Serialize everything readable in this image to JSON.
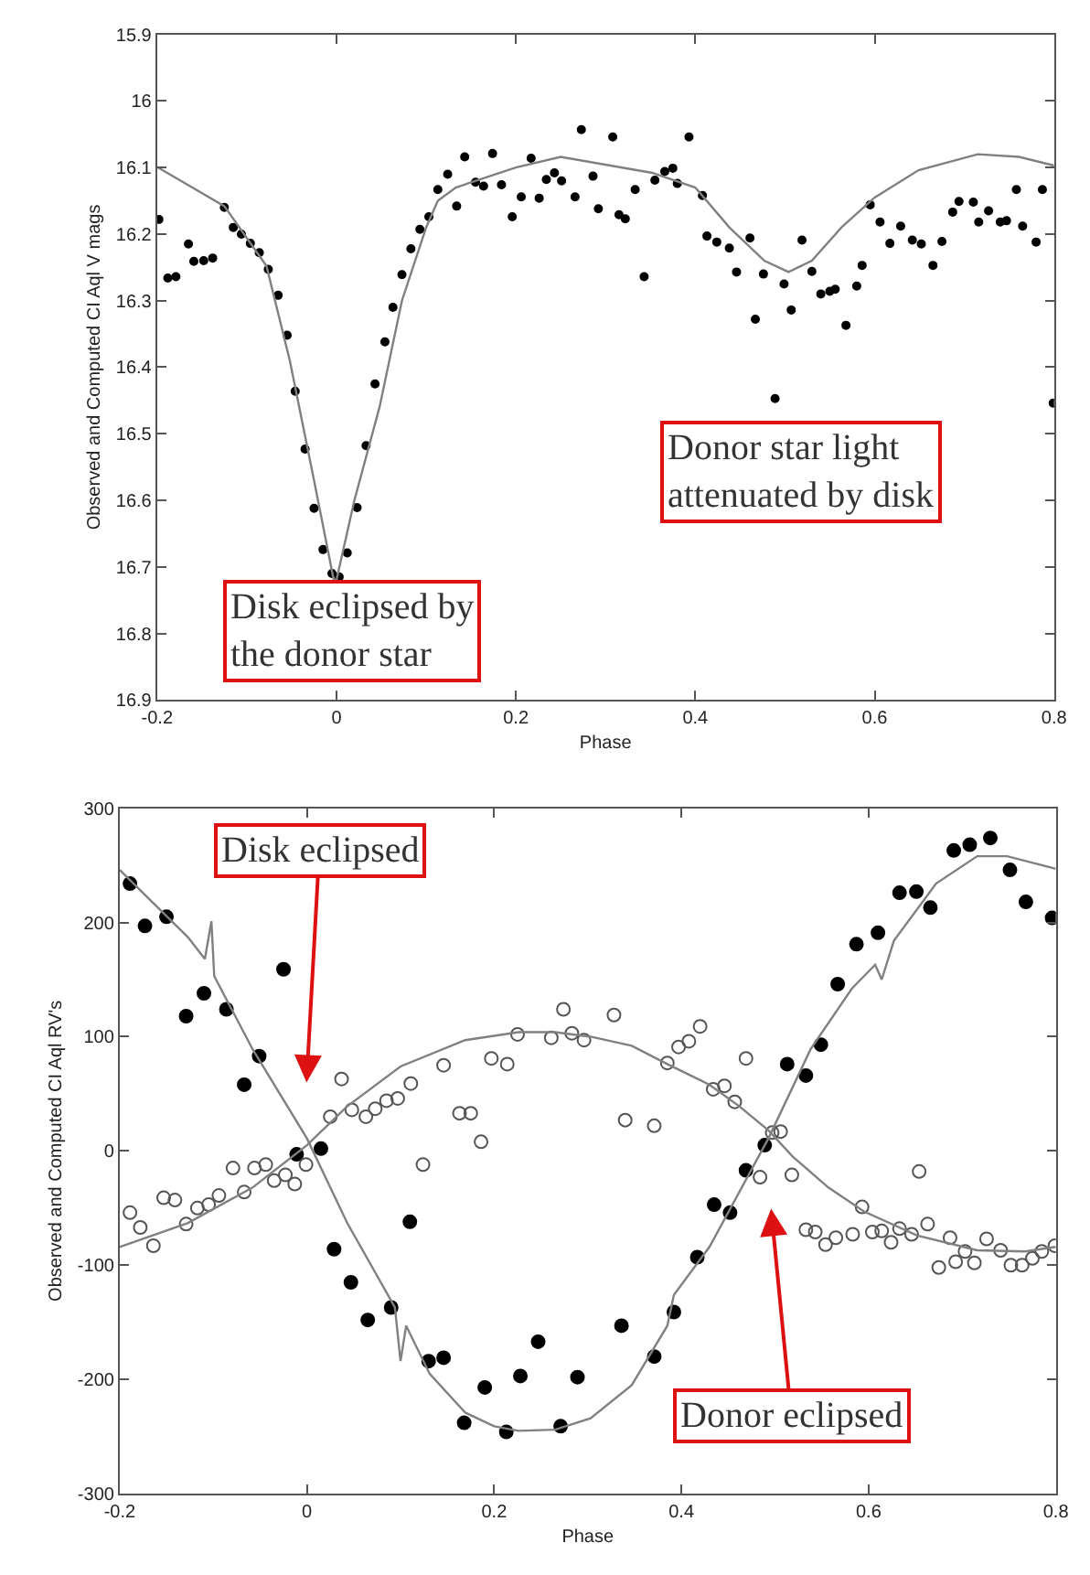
{
  "chart_data": [
    {
      "type": "scatter",
      "xlabel": "Phase",
      "ylabel": "Observed and Computed CI Aql V mags",
      "xlim": [
        -0.2,
        0.8
      ],
      "xticks": [
        -0.2,
        0,
        0.2,
        0.4,
        0.6,
        0.8
      ],
      "ylim": [
        16.9,
        15.9
      ],
      "yticks": [
        15.9,
        16,
        16.1,
        16.2,
        16.3,
        16.4,
        16.5,
        16.6,
        16.7,
        16.8,
        16.9
      ],
      "grid": false,
      "annotations": [
        "Disk eclipsed by\nthe donor star",
        "Donor star light\nattenuated by disk"
      ],
      "series": [
        {
          "marker": "circle",
          "color": "#000000",
          "x": [
            -0.198,
            -0.188,
            -0.179,
            -0.165,
            -0.159,
            -0.148,
            -0.138,
            -0.125,
            -0.115,
            -0.106,
            -0.096,
            -0.086,
            -0.076,
            -0.065,
            -0.055,
            -0.046,
            -0.035,
            -0.025,
            -0.015,
            -0.005,
            0.003,
            0.012,
            0.023,
            0.033,
            0.043,
            0.054,
            0.063,
            0.073,
            0.083,
            0.093,
            0.103,
            0.113,
            0.124,
            0.134,
            0.143,
            0.155,
            0.164,
            0.174,
            0.184,
            0.196,
            0.206,
            0.217,
            0.226,
            0.234,
            0.243,
            0.251,
            0.266,
            0.273,
            0.286,
            0.292,
            0.308,
            0.315,
            0.322,
            0.333,
            0.343,
            0.355,
            0.366,
            0.375,
            0.38,
            0.393,
            0.408,
            0.413,
            0.424,
            0.438,
            0.446,
            0.461,
            0.467,
            0.476,
            0.489,
            0.499,
            0.507,
            0.519,
            0.53,
            0.54,
            0.55,
            0.556,
            0.568,
            0.58,
            0.586,
            0.595,
            0.606,
            0.617,
            0.629,
            0.642,
            0.652,
            0.665,
            0.675,
            0.687,
            0.694,
            0.71,
            0.716,
            0.727,
            0.74,
            0.747,
            0.758,
            0.765,
            0.78,
            0.787,
            0.799
          ],
          "values": [
            16.178,
            16.266,
            16.264,
            16.215,
            16.241,
            16.24,
            16.236,
            16.16,
            16.19,
            16.2,
            16.214,
            16.228,
            16.253,
            16.292,
            16.352,
            16.436,
            16.523,
            16.612,
            16.674,
            16.71,
            16.715,
            16.679,
            16.611,
            16.518,
            16.425,
            16.362,
            16.31,
            16.261,
            16.222,
            16.193,
            16.174,
            16.133,
            16.11,
            16.158,
            16.084,
            16.122,
            16.128,
            16.079,
            16.126,
            16.174,
            16.144,
            16.086,
            16.146,
            16.118,
            16.108,
            16.12,
            16.144,
            16.043,
            16.113,
            16.162,
            16.054,
            16.171,
            16.177,
            16.133,
            16.264,
            16.119,
            16.106,
            16.101,
            16.124,
            16.054,
            16.142,
            16.203,
            16.212,
            16.221,
            16.257,
            16.206,
            16.328,
            16.26,
            16.447,
            16.275,
            16.314,
            16.209,
            16.256,
            16.29,
            16.286,
            16.283,
            16.337,
            16.278,
            16.247,
            16.156,
            16.182,
            16.214,
            16.188,
            16.209,
            16.215,
            16.247,
            16.211,
            16.167,
            16.151,
            16.152,
            16.182,
            16.165,
            16.182,
            16.18,
            16.133,
            16.188,
            16.212,
            16.133,
            16.454
          ]
        },
        {
          "type": "line",
          "marker": "none",
          "line_style": "solid",
          "color": "#808080",
          "x": [
            -0.2,
            -0.125,
            -0.078,
            -0.052,
            -0.025,
            -0.003,
            0,
            0.02,
            0.048,
            0.073,
            0.1,
            0.113,
            0.133,
            0.2,
            0.25,
            0.352,
            0.4,
            0.438,
            0.477,
            0.504,
            0.53,
            0.563,
            0.6,
            0.649,
            0.715,
            0.761,
            0.8
          ],
          "values": [
            16.099,
            16.158,
            16.248,
            16.39,
            16.57,
            16.72,
            16.72,
            16.6,
            16.46,
            16.3,
            16.19,
            16.15,
            16.13,
            16.1,
            16.084,
            16.108,
            16.13,
            16.19,
            16.24,
            16.257,
            16.24,
            16.19,
            16.145,
            16.104,
            16.08,
            16.084,
            16.097
          ]
        }
      ]
    },
    {
      "type": "scatter",
      "xlabel": "Phase",
      "ylabel": "Observed and Computed CI Aql RV's",
      "xlim": [
        -0.2,
        0.8
      ],
      "xticks": [
        -0.2,
        0,
        0.2,
        0.4,
        0.6,
        0.8
      ],
      "ylim": [
        -300,
        300
      ],
      "yticks": [
        -300,
        -200,
        -100,
        0,
        100,
        200,
        300
      ],
      "grid": false,
      "annotations": [
        "Disk eclipsed",
        "Donor eclipsed"
      ],
      "series": [
        {
          "marker": "circle",
          "color": "#000000",
          "x": [
            -0.189,
            -0.173,
            -0.15,
            -0.129,
            -0.11,
            -0.086,
            -0.067,
            -0.051,
            -0.025,
            -0.011,
            0.015,
            0.029,
            0.047,
            0.065,
            0.09,
            0.11,
            0.13,
            0.146,
            0.168,
            0.19,
            0.213,
            0.228,
            0.247,
            0.271,
            0.289,
            0.336,
            0.371,
            0.392,
            0.417,
            0.435,
            0.452,
            0.469,
            0.489,
            0.513,
            0.533,
            0.549,
            0.567,
            0.587,
            0.61,
            0.633,
            0.651,
            0.666,
            0.691,
            0.708,
            0.73,
            0.751,
            0.768,
            0.796
          ],
          "values": [
            234,
            197,
            205,
            118,
            138,
            124,
            58,
            83,
            159,
            -3,
            2,
            -86,
            -115,
            -148,
            -137,
            -62,
            -184,
            -181,
            -238,
            -207,
            -246,
            -197,
            -167,
            -241,
            -198,
            -153,
            -180,
            -141,
            -93,
            -47,
            -54,
            -17,
            5,
            76,
            66,
            93,
            146,
            181,
            191,
            226,
            227,
            213,
            263,
            268,
            274,
            246,
            218,
            204
          ]
        },
        {
          "marker": "circle-open",
          "color": "#555555",
          "x": [
            -0.189,
            -0.178,
            -0.164,
            -0.153,
            -0.141,
            -0.129,
            -0.117,
            -0.105,
            -0.094,
            -0.079,
            -0.067,
            -0.056,
            -0.044,
            -0.035,
            -0.023,
            -0.013,
            -0.001,
            0.025,
            0.037,
            0.048,
            0.063,
            0.073,
            0.085,
            0.097,
            0.111,
            0.124,
            0.146,
            0.163,
            0.175,
            0.186,
            0.197,
            0.214,
            0.225,
            0.261,
            0.274,
            0.283,
            0.296,
            0.328,
            0.34,
            0.371,
            0.385,
            0.397,
            0.408,
            0.42,
            0.434,
            0.446,
            0.457,
            0.469,
            0.484,
            0.497,
            0.506,
            0.518,
            0.533,
            0.543,
            0.554,
            0.565,
            0.583,
            0.593,
            0.604,
            0.614,
            0.624,
            0.633,
            0.646,
            0.654,
            0.663,
            0.675,
            0.687,
            0.693,
            0.703,
            0.713,
            0.726,
            0.741,
            0.752,
            0.764,
            0.775,
            0.785,
            0.799
          ],
          "values": [
            -54,
            -67,
            -83,
            -41,
            -43,
            -64,
            -50,
            -47,
            -39,
            -15,
            -36,
            -15,
            -12,
            -26,
            -21,
            -29,
            -12,
            30,
            63,
            36,
            30,
            37,
            44,
            46,
            59,
            -12,
            75,
            33,
            33,
            8,
            81,
            76,
            102,
            99,
            124,
            103,
            97,
            119,
            27,
            22,
            77,
            91,
            96,
            109,
            54,
            57,
            43,
            81,
            -23,
            16,
            17,
            -21,
            -69,
            -71,
            -82,
            -76,
            -73,
            -49,
            -71,
            -70,
            -80,
            -68,
            -73,
            -18,
            -64,
            -102,
            -76,
            -97,
            -88,
            -98,
            -77,
            -87,
            -100,
            -100,
            -94,
            -88,
            -83
          ]
        },
        {
          "type": "line",
          "marker": "none",
          "line_style": "solid",
          "color": "#808080",
          "x": [
            -0.2,
            -0.127,
            -0.109,
            -0.102,
            -0.099,
            -0.058,
            0,
            0.043,
            0.094,
            0.1,
            0.106,
            0.131,
            0.169,
            0.2,
            0.226,
            0.265,
            0.303,
            0.347,
            0.385,
            0.392,
            0.43,
            0.493,
            0.538,
            0.582,
            0.607,
            0.614,
            0.627,
            0.672,
            0.716,
            0.748,
            0.8
          ],
          "values": [
            246,
            187,
            168,
            201,
            153,
            89,
            11,
            -63,
            -137,
            -184,
            -153,
            -195,
            -229,
            -241,
            -245,
            -244,
            -234,
            -205,
            -153,
            -126,
            -84,
            11,
            89,
            142,
            163,
            150,
            184,
            234,
            258,
            258,
            247
          ]
        },
        {
          "type": "line",
          "marker": "none",
          "line_style": "solid",
          "color": "#808080",
          "x": [
            -0.2,
            -0.127,
            -0.058,
            0,
            0.043,
            0.1,
            0.169,
            0.226,
            0.265,
            0.303,
            0.347,
            0.385,
            0.43,
            0.462,
            0.493,
            0.519,
            0.557,
            0.595,
            0.652,
            0.716,
            0.767,
            0.8
          ],
          "values": [
            -84,
            -63,
            -32,
            5,
            39,
            74,
            97,
            104,
            104,
            100,
            92,
            76,
            58,
            39,
            18,
            -5,
            -32,
            -53,
            -74,
            -87,
            -88,
            -84
          ]
        }
      ]
    }
  ]
}
